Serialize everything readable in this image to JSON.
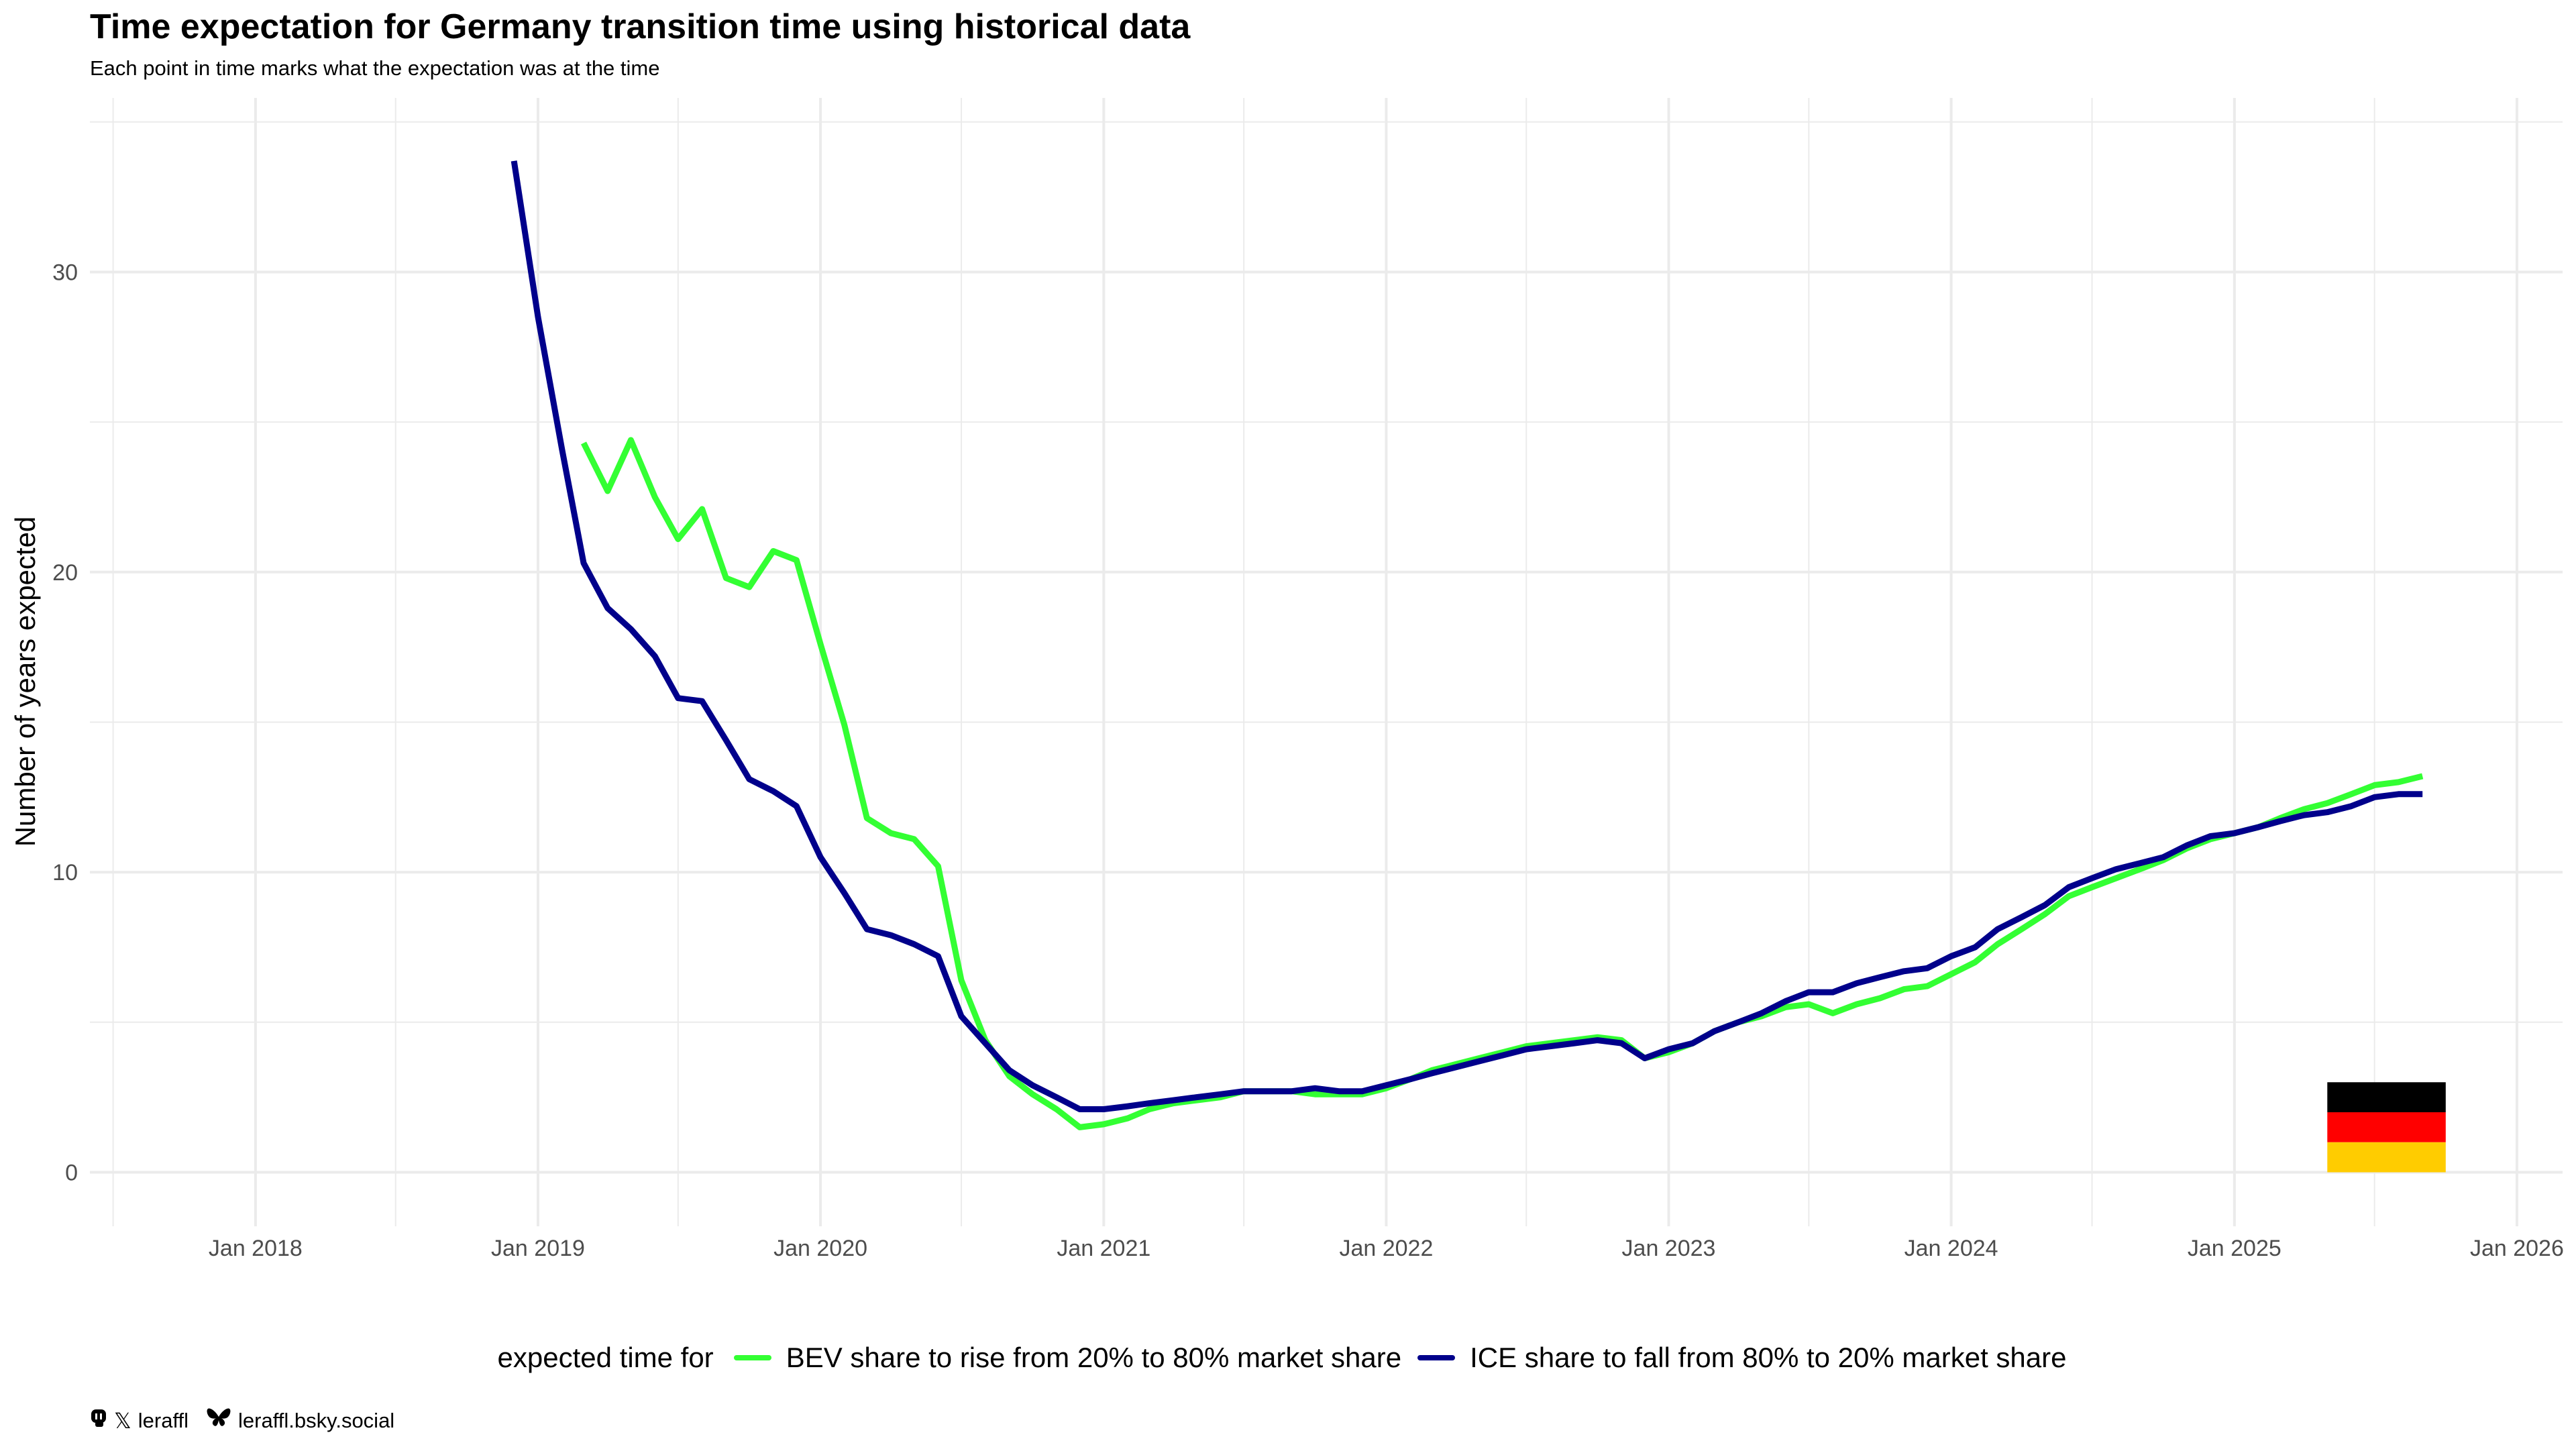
{
  "title": "Time expectation for Germany transition time using historical data",
  "subtitle": "Each point in time marks what the expectation was at the time",
  "colors": {
    "bev": "#33ff33",
    "ice": "#00008b",
    "grid": "#ebebeb",
    "flag_black": "#000000",
    "flag_red": "#ff0000",
    "flag_gold": "#ffcc00"
  },
  "legend": {
    "title": "expected time for",
    "bev_label": "BEV share to rise from 20% to 80% market share",
    "ice_label": "ICE share to fall from 80% to 20% market share"
  },
  "caption": {
    "icons": [
      "mastodon-icon",
      "x-icon",
      "bluesky-icon"
    ],
    "handle": "leraffl",
    "bsky": "leraffl.bsky.social"
  },
  "chart_data": {
    "type": "line",
    "xlabel": "",
    "ylabel": "Number of years expected",
    "xlim": [
      "2017-06-01",
      "2026-03-01"
    ],
    "ylim": [
      -1.8,
      35.8
    ],
    "x_ticks": [
      "Jan 2018",
      "Jan 2019",
      "Jan 2020",
      "Jan 2021",
      "Jan 2022",
      "Jan 2023",
      "Jan 2024",
      "Jan 2025",
      "Jan 2026"
    ],
    "y_ticks": [
      0,
      10,
      20,
      30
    ],
    "legend_position": "bottom",
    "grid": true,
    "series": [
      {
        "name": "BEV share to rise from 20% to 80% market share",
        "color": "#33ff33",
        "points": [
          [
            "2019-03-01",
            24.3
          ],
          [
            "2019-04-01",
            22.7
          ],
          [
            "2019-05-01",
            24.4
          ],
          [
            "2019-06-01",
            22.5
          ],
          [
            "2019-07-01",
            21.1
          ],
          [
            "2019-08-01",
            22.1
          ],
          [
            "2019-09-01",
            19.8
          ],
          [
            "2019-10-01",
            19.5
          ],
          [
            "2019-11-01",
            20.7
          ],
          [
            "2019-12-01",
            20.4
          ],
          [
            "2020-01-01",
            17.6
          ],
          [
            "2020-02-01",
            14.9
          ],
          [
            "2020-03-01",
            11.8
          ],
          [
            "2020-04-01",
            11.3
          ],
          [
            "2020-05-01",
            11.1
          ],
          [
            "2020-06-01",
            10.2
          ],
          [
            "2020-07-01",
            6.4
          ],
          [
            "2020-08-01",
            4.4
          ],
          [
            "2020-09-01",
            3.2
          ],
          [
            "2020-10-01",
            2.6
          ],
          [
            "2020-11-01",
            2.1
          ],
          [
            "2020-12-01",
            1.5
          ],
          [
            "2021-01-01",
            1.6
          ],
          [
            "2021-02-01",
            1.8
          ],
          [
            "2021-03-01",
            2.1
          ],
          [
            "2021-04-01",
            2.3
          ],
          [
            "2021-05-01",
            2.4
          ],
          [
            "2021-06-01",
            2.5
          ],
          [
            "2021-07-01",
            2.7
          ],
          [
            "2021-08-01",
            2.7
          ],
          [
            "2021-09-01",
            2.7
          ],
          [
            "2021-10-01",
            2.6
          ],
          [
            "2021-11-01",
            2.6
          ],
          [
            "2021-12-01",
            2.6
          ],
          [
            "2022-01-01",
            2.8
          ],
          [
            "2022-02-01",
            3.1
          ],
          [
            "2022-03-01",
            3.4
          ],
          [
            "2022-04-01",
            3.6
          ],
          [
            "2022-05-01",
            3.8
          ],
          [
            "2022-06-01",
            4.0
          ],
          [
            "2022-07-01",
            4.2
          ],
          [
            "2022-08-01",
            4.3
          ],
          [
            "2022-09-01",
            4.4
          ],
          [
            "2022-10-01",
            4.5
          ],
          [
            "2022-11-01",
            4.4
          ],
          [
            "2022-12-01",
            3.8
          ],
          [
            "2023-01-01",
            4.0
          ],
          [
            "2023-02-01",
            4.3
          ],
          [
            "2023-03-01",
            4.7
          ],
          [
            "2023-04-01",
            5.0
          ],
          [
            "2023-05-01",
            5.2
          ],
          [
            "2023-06-01",
            5.5
          ],
          [
            "2023-07-01",
            5.6
          ],
          [
            "2023-08-01",
            5.3
          ],
          [
            "2023-09-01",
            5.6
          ],
          [
            "2023-10-01",
            5.8
          ],
          [
            "2023-11-01",
            6.1
          ],
          [
            "2023-12-01",
            6.2
          ],
          [
            "2024-01-01",
            6.6
          ],
          [
            "2024-02-01",
            7.0
          ],
          [
            "2024-03-01",
            7.6
          ],
          [
            "2024-04-01",
            8.1
          ],
          [
            "2024-05-01",
            8.6
          ],
          [
            "2024-06-01",
            9.2
          ],
          [
            "2024-07-01",
            9.5
          ],
          [
            "2024-08-01",
            9.8
          ],
          [
            "2024-09-01",
            10.1
          ],
          [
            "2024-10-01",
            10.4
          ],
          [
            "2024-11-01",
            10.8
          ],
          [
            "2024-12-01",
            11.1
          ],
          [
            "2025-01-01",
            11.3
          ],
          [
            "2025-02-01",
            11.5
          ],
          [
            "2025-03-01",
            11.8
          ],
          [
            "2025-04-01",
            12.1
          ],
          [
            "2025-05-01",
            12.3
          ],
          [
            "2025-06-01",
            12.6
          ],
          [
            "2025-07-01",
            12.9
          ],
          [
            "2025-08-01",
            13.0
          ],
          [
            "2025-09-01",
            13.2
          ]
        ]
      },
      {
        "name": "ICE share to fall from 80% to 20% market share",
        "color": "#00008b",
        "points": [
          [
            "2018-12-01",
            33.7
          ],
          [
            "2019-01-01",
            28.5
          ],
          [
            "2019-02-01",
            24.1
          ],
          [
            "2019-03-01",
            20.3
          ],
          [
            "2019-04-01",
            18.8
          ],
          [
            "2019-05-01",
            18.1
          ],
          [
            "2019-06-01",
            17.2
          ],
          [
            "2019-07-01",
            15.8
          ],
          [
            "2019-08-01",
            15.7
          ],
          [
            "2019-09-01",
            14.4
          ],
          [
            "2019-10-01",
            13.1
          ],
          [
            "2019-11-01",
            12.7
          ],
          [
            "2019-12-01",
            12.2
          ],
          [
            "2020-01-01",
            10.5
          ],
          [
            "2020-02-01",
            9.3
          ],
          [
            "2020-03-01",
            8.1
          ],
          [
            "2020-04-01",
            7.9
          ],
          [
            "2020-05-01",
            7.6
          ],
          [
            "2020-06-01",
            7.2
          ],
          [
            "2020-07-01",
            5.2
          ],
          [
            "2020-08-01",
            4.3
          ],
          [
            "2020-09-01",
            3.4
          ],
          [
            "2020-10-01",
            2.9
          ],
          [
            "2020-11-01",
            2.5
          ],
          [
            "2020-12-01",
            2.1
          ],
          [
            "2021-01-01",
            2.1
          ],
          [
            "2021-02-01",
            2.2
          ],
          [
            "2021-03-01",
            2.3
          ],
          [
            "2021-04-01",
            2.4
          ],
          [
            "2021-05-01",
            2.5
          ],
          [
            "2021-06-01",
            2.6
          ],
          [
            "2021-07-01",
            2.7
          ],
          [
            "2021-08-01",
            2.7
          ],
          [
            "2021-09-01",
            2.7
          ],
          [
            "2021-10-01",
            2.8
          ],
          [
            "2021-11-01",
            2.7
          ],
          [
            "2021-12-01",
            2.7
          ],
          [
            "2022-01-01",
            2.9
          ],
          [
            "2022-02-01",
            3.1
          ],
          [
            "2022-03-01",
            3.3
          ],
          [
            "2022-04-01",
            3.5
          ],
          [
            "2022-05-01",
            3.7
          ],
          [
            "2022-06-01",
            3.9
          ],
          [
            "2022-07-01",
            4.1
          ],
          [
            "2022-08-01",
            4.2
          ],
          [
            "2022-09-01",
            4.3
          ],
          [
            "2022-10-01",
            4.4
          ],
          [
            "2022-11-01",
            4.3
          ],
          [
            "2022-12-01",
            3.8
          ],
          [
            "2023-01-01",
            4.1
          ],
          [
            "2023-02-01",
            4.3
          ],
          [
            "2023-03-01",
            4.7
          ],
          [
            "2023-04-01",
            5.0
          ],
          [
            "2023-05-01",
            5.3
          ],
          [
            "2023-06-01",
            5.7
          ],
          [
            "2023-07-01",
            6.0
          ],
          [
            "2023-08-01",
            6.0
          ],
          [
            "2023-09-01",
            6.3
          ],
          [
            "2023-10-01",
            6.5
          ],
          [
            "2023-11-01",
            6.7
          ],
          [
            "2023-12-01",
            6.8
          ],
          [
            "2024-01-01",
            7.2
          ],
          [
            "2024-02-01",
            7.5
          ],
          [
            "2024-03-01",
            8.1
          ],
          [
            "2024-04-01",
            8.5
          ],
          [
            "2024-05-01",
            8.9
          ],
          [
            "2024-06-01",
            9.5
          ],
          [
            "2024-07-01",
            9.8
          ],
          [
            "2024-08-01",
            10.1
          ],
          [
            "2024-09-01",
            10.3
          ],
          [
            "2024-10-01",
            10.5
          ],
          [
            "2024-11-01",
            10.9
          ],
          [
            "2024-12-01",
            11.2
          ],
          [
            "2025-01-01",
            11.3
          ],
          [
            "2025-02-01",
            11.5
          ],
          [
            "2025-03-01",
            11.7
          ],
          [
            "2025-04-01",
            11.9
          ],
          [
            "2025-05-01",
            12.0
          ],
          [
            "2025-06-01",
            12.2
          ],
          [
            "2025-07-01",
            12.5
          ],
          [
            "2025-08-01",
            12.6
          ],
          [
            "2025-09-01",
            12.6
          ]
        ]
      }
    ],
    "flag": {
      "name": "germany-flag",
      "position": "bottom-right",
      "stripes": [
        "#000000",
        "#ff0000",
        "#ffcc00"
      ]
    }
  }
}
